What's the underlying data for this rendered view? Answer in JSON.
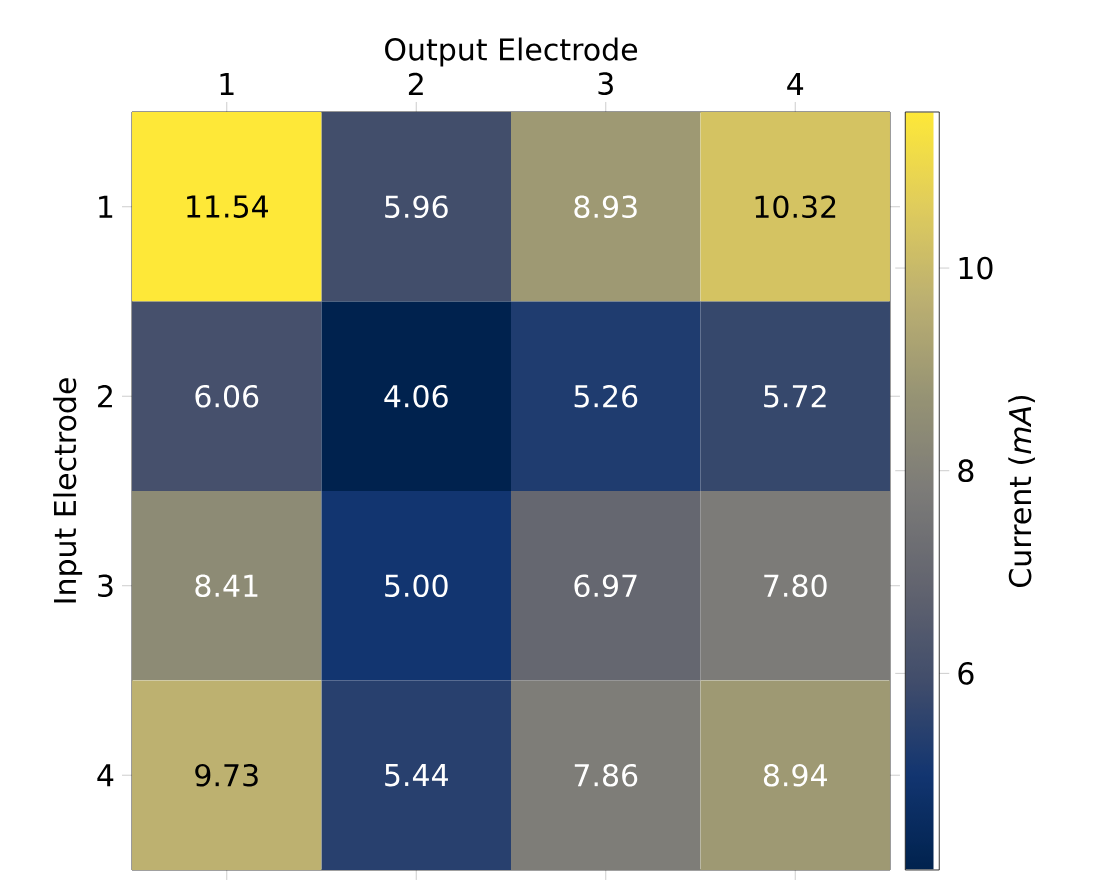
{
  "chart_data": {
    "type": "heatmap",
    "xlabel": "Output Electrode",
    "ylabel": "Input Electrode",
    "clabel": "Current (*mA*)",
    "categories": [
      "1",
      "2",
      "3",
      "4"
    ],
    "y_categories": [
      "1",
      "2",
      "3",
      "4"
    ],
    "cells": [
      [
        11.54,
        5.96,
        8.93,
        10.32
      ],
      [
        6.06,
        4.06,
        5.26,
        5.72
      ],
      [
        8.41,
        5.0,
        6.97,
        7.8
      ],
      [
        9.73,
        5.44,
        7.86,
        8.94
      ]
    ],
    "cell_labels": [
      [
        "11.54",
        "5.96",
        "8.93",
        "10.32"
      ],
      [
        "6.06",
        "4.06",
        "5.26",
        "5.72"
      ],
      [
        "8.41",
        "5.00",
        "6.97",
        "7.80"
      ],
      [
        "9.73",
        "5.44",
        "7.86",
        "8.94"
      ]
    ],
    "clim": [
      4.06,
      11.54
    ],
    "cticks": [
      6,
      8,
      10
    ]
  }
}
